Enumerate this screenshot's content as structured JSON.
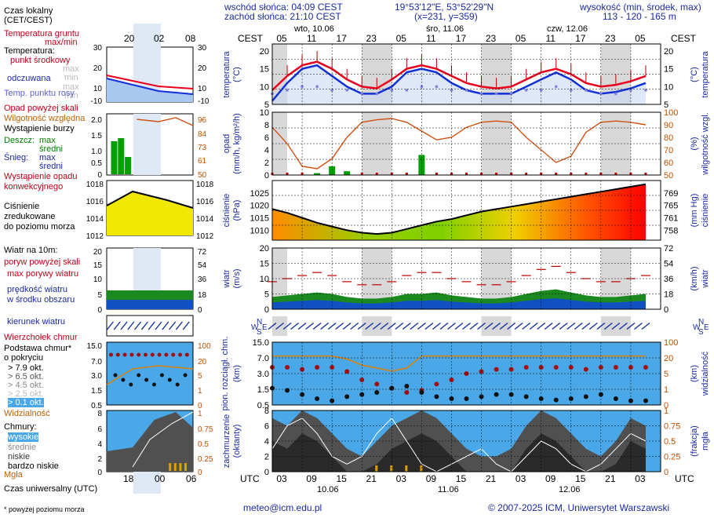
{
  "header": {
    "sunrise": "wschód słońca: 04:09 CEST",
    "sunset": "zachód słońca: 21:10 CEST",
    "coords": "19°53'12\"E, 53°52'29\"N",
    "grid": "(x=231, y=359)",
    "height_label": "wysokość (min, środek, max)",
    "height_values": "113 - 120 - 165 m",
    "cest_left": "CEST",
    "cest_right": "CEST",
    "utc_left": "UTC",
    "utc_right": "UTC"
  },
  "days_top": [
    {
      "label": "wto, 10.06",
      "x": 413
    },
    {
      "label": "śro, 11.06",
      "x": 566
    },
    {
      "label": "czw, 12.06",
      "x": 720
    }
  ],
  "days_bottom": [
    {
      "label": "10.06"
    },
    {
      "label": "11.06"
    },
    {
      "label": "12.06"
    }
  ],
  "cest_ticks": [
    "05",
    "11",
    "17",
    "23",
    "05",
    "11",
    "17",
    "23",
    "05",
    "11",
    "17",
    "23",
    "05"
  ],
  "utc_ticks": [
    "03",
    "09",
    "15",
    "21",
    "03",
    "09",
    "15",
    "21",
    "03",
    "09",
    "15",
    "21",
    "03"
  ],
  "legend": {
    "local_time": "Czas lokalny",
    "local_time2": "(CET/CEST)",
    "local_ticks": [
      "20",
      "02",
      "08"
    ],
    "utc_ticks": [
      "18",
      "00",
      "06"
    ],
    "soil_temp": "Temperatura gruntu",
    "soil_sub": "max/min",
    "temp": "Temperatura:",
    "temp_mid": "punkt środkowy",
    "temp_max": "max",
    "temp_min": "min",
    "temp_felt": "odczuwana",
    "temp_felt_max": "max",
    "temp_felt_min": "min",
    "dew_point": "Temp. punktu rosy",
    "precip_over": "Opad powyżej skali",
    "humidity": "Wilgotność względna",
    "storm": "Wystąpienie burzy",
    "rain": "Deszcz:",
    "rain_max": "max",
    "rain_mid": "średni",
    "snow": "Śnieg:",
    "snow_max": "max",
    "snow_mid": "średni",
    "precip_occ": "Wystąpienie opadu",
    "precip_conv": "konwekcyjnego",
    "pressure": "Ciśnienie",
    "pressure2": "zredukowane",
    "pressure3": "do poziomu morza",
    "wind_title": "Wiatr na 10m:",
    "gust_over": "poryw powyżej skali",
    "gust_max": "max porywy wiatru",
    "wind_speed": "prędkość wiatru",
    "wind_area": "w środku obszaru",
    "wind_dir": "kierunek wiatru",
    "cloud_top": "Wierzchołek chmur",
    "cloud_base": "Podstawa chmur*",
    "cloud_base2": "o pokryciu",
    "okt1": "> 7.9 okt.",
    "okt2": "> 6.5 okt.",
    "okt3": "> 4.5 okt.",
    "okt4": "> 2.5 okt.",
    "okt5": "> 0.1 okt.",
    "visibility": "Widzialność",
    "clouds": "Chmury:",
    "cl_high": "wysokie",
    "cl_mid": "średnie",
    "cl_low": "niskie",
    "cl_vlow": "bardzo niskie",
    "fog": "Mgła",
    "utc_time": "Czas uniwersalny (UTC)",
    "footnote": "* powyżej poziomu morza"
  },
  "axes": {
    "temp_label": "temperatura",
    "temp_unit": "(°C)",
    "precip_label": "opad",
    "precip_unit": "(mm/h, kg/m²/h)",
    "hum_label": "wilgotność wzgl.",
    "hum_unit": "(%)",
    "press_label": "ciśnienie",
    "press_unit": "(hPa)",
    "press_unit_r": "(mm Hg)",
    "wind_label": "wiatr",
    "wind_unit": "(m/s)",
    "wind_unit_r": "(km/h)",
    "cloud_label": "pion. rozciągł. chm.",
    "cloud_unit": "(km)",
    "vis_label": "widzialność",
    "vis_unit": "(km)",
    "cover_label": "zachmurzenie",
    "cover_unit": "(oktanty)",
    "fog_label": "mgła",
    "fog_unit": "(frakcja)",
    "dir_n": "N",
    "dir_w": "W",
    "dir_s": "S",
    "dir_e": "E"
  },
  "footer": {
    "email": "meteo@icm.edu.pl",
    "copyright": "© 2007-2025 ICM, Uniwersytet Warszawski"
  },
  "colors": {
    "temp": "#e8001c",
    "felt": "#1030d8",
    "dew": "#8080e0",
    "grid": "#000000",
    "night": "#d8d8d8",
    "precip_green": "#00a000",
    "humidity": "#d05010",
    "pressure_line": "#000000",
    "wind_blue": "#1050c0",
    "gust": "#c00000",
    "sky": "#4aa8e8",
    "cloud_dark": "#404040"
  },
  "chart_data": [
    {
      "type": "line",
      "title": "temperatura",
      "ylabel": "(°C)",
      "ylim": [
        5,
        22
      ],
      "x_hours": "0..78 step 3 (UTC from 10.06 03:00)",
      "series": [
        {
          "name": "temperatura",
          "values": [
            9,
            13,
            16,
            17,
            15,
            12,
            10,
            9.5,
            12,
            15,
            16,
            15,
            13,
            11,
            10,
            9.5,
            10,
            12,
            14,
            15,
            13.5,
            11,
            10,
            10.5,
            11.5,
            13
          ]
        },
        {
          "name": "odczuwana",
          "values": [
            6,
            11,
            15,
            16,
            13,
            10,
            8,
            8,
            10,
            14,
            15,
            14,
            11,
            9,
            8,
            8,
            8,
            10,
            12,
            14,
            12,
            9,
            8,
            8.5,
            9.5,
            11
          ]
        },
        {
          "name": "punkt rosy",
          "values": [
            8,
            9,
            10,
            10,
            9,
            9,
            8,
            8,
            9,
            9,
            10,
            10,
            9,
            9,
            8,
            8,
            8,
            9,
            9,
            10,
            9,
            9,
            8,
            8,
            9,
            9
          ]
        }
      ]
    },
    {
      "type": "line",
      "title": "wilgotność wzgl.",
      "ylabel": "(%)",
      "ylim": [
        50,
        100
      ],
      "series": [
        {
          "name": "wilgotność",
          "values": [
            88,
            75,
            57,
            55,
            63,
            80,
            92,
            94,
            95,
            92,
            85,
            78,
            80,
            88,
            92,
            93,
            92,
            80,
            70,
            60,
            65,
            84,
            92,
            93,
            92,
            90
          ]
        },
        {
          "name": "opad",
          "values": [
            0,
            0,
            0,
            0.3,
            1.4,
            0.6,
            0,
            0,
            0,
            0,
            3.2,
            0,
            0,
            0,
            0,
            0,
            0,
            0,
            0,
            0,
            0,
            0,
            0,
            0,
            0,
            0
          ]
        }
      ]
    },
    {
      "type": "area",
      "title": "ciśnienie",
      "ylabel": "(hPa)",
      "ylim": [
        1006,
        1030
      ],
      "series": [
        {
          "name": "ciśnienie",
          "values": [
            1018.5,
            1017,
            1015,
            1013,
            1011.5,
            1010,
            1009,
            1008.5,
            1009,
            1010.5,
            1012,
            1013.5,
            1014.5,
            1016,
            1017.5,
            1018.5,
            1019.5,
            1020.5,
            1021.5,
            1022.5,
            1023.5,
            1024.5,
            1025.5,
            1026.5,
            1027.5,
            1028.5
          ]
        }
      ]
    },
    {
      "type": "line",
      "title": "wiatr",
      "ylabel": "(m/s)",
      "ylim": [
        0,
        20
      ],
      "series": [
        {
          "name": "prędkość",
          "values": [
            4,
            4.5,
            5,
            5.5,
            5,
            4,
            3.5,
            3.5,
            4,
            5,
            5,
            5.5,
            4.5,
            4,
            3.5,
            3.5,
            4,
            5,
            6,
            6.5,
            5.5,
            4.5,
            4,
            4,
            4.5,
            5
          ]
        },
        {
          "name": "max porywy",
          "values": [
            9,
            10,
            11,
            12,
            11,
            9,
            8,
            8,
            9,
            11,
            12,
            12,
            10,
            9,
            8,
            8,
            9,
            11,
            13,
            14,
            12,
            10,
            9,
            9,
            10,
            11
          ]
        }
      ]
    }
  ]
}
